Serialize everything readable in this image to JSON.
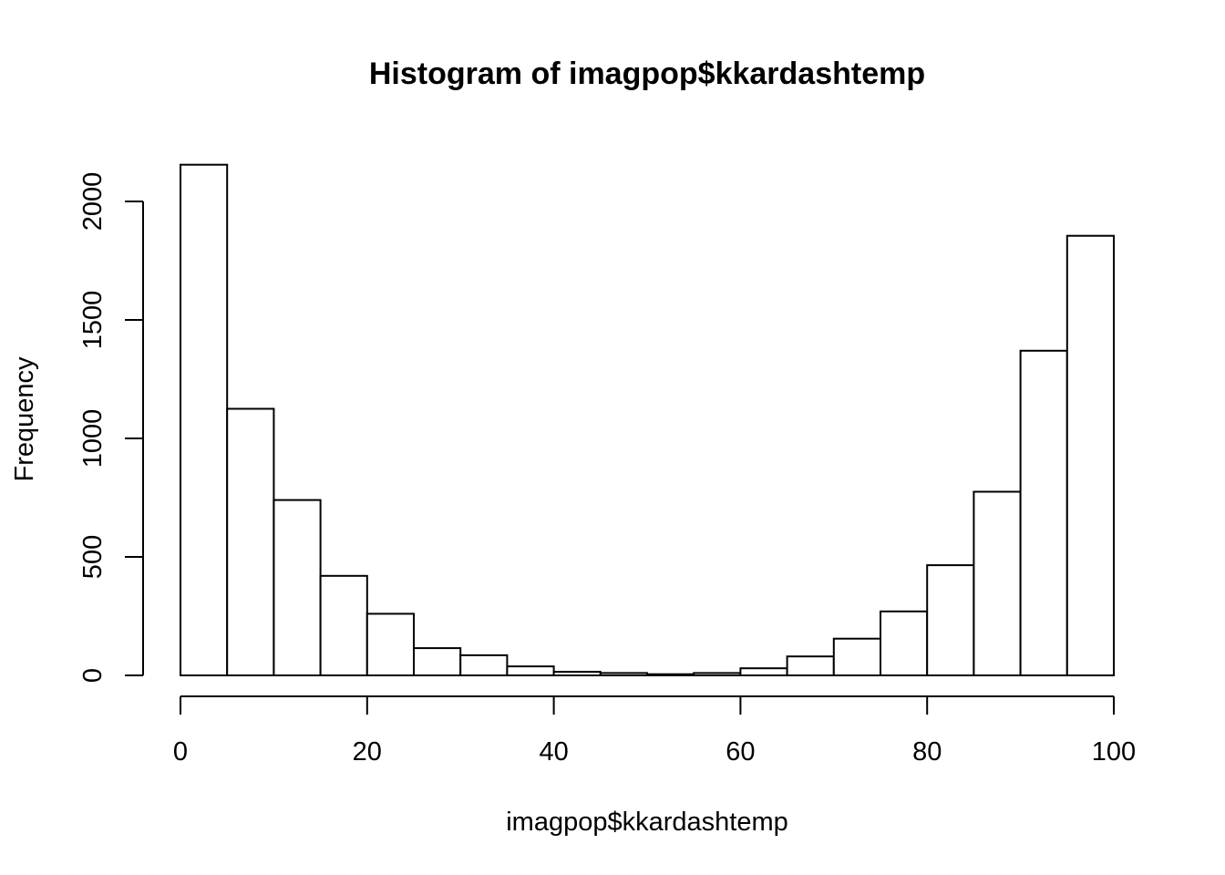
{
  "chart_data": {
    "type": "bar",
    "title": "Histogram of imagpop$kkardashtemp",
    "xlabel": "imagpop$kkardashtemp",
    "ylabel": "Frequency",
    "bin_width": 5,
    "bins": [
      {
        "start": 0,
        "end": 5,
        "count": 2155
      },
      {
        "start": 5,
        "end": 10,
        "count": 1125
      },
      {
        "start": 10,
        "end": 15,
        "count": 740
      },
      {
        "start": 15,
        "end": 20,
        "count": 420
      },
      {
        "start": 20,
        "end": 25,
        "count": 260
      },
      {
        "start": 25,
        "end": 30,
        "count": 115
      },
      {
        "start": 30,
        "end": 35,
        "count": 85
      },
      {
        "start": 35,
        "end": 40,
        "count": 38
      },
      {
        "start": 40,
        "end": 45,
        "count": 15
      },
      {
        "start": 45,
        "end": 50,
        "count": 10
      },
      {
        "start": 50,
        "end": 55,
        "count": 5
      },
      {
        "start": 55,
        "end": 60,
        "count": 10
      },
      {
        "start": 60,
        "end": 65,
        "count": 30
      },
      {
        "start": 65,
        "end": 70,
        "count": 80
      },
      {
        "start": 70,
        "end": 75,
        "count": 155
      },
      {
        "start": 75,
        "end": 80,
        "count": 270
      },
      {
        "start": 80,
        "end": 85,
        "count": 465
      },
      {
        "start": 85,
        "end": 90,
        "count": 775
      },
      {
        "start": 90,
        "end": 95,
        "count": 1370
      },
      {
        "start": 95,
        "end": 100,
        "count": 1855
      }
    ],
    "xlim": [
      0,
      100
    ],
    "ylim": [
      0,
      2155
    ],
    "x_ticks": [
      0,
      20,
      40,
      60,
      80,
      100
    ],
    "y_ticks": [
      0,
      500,
      1000,
      1500,
      2000
    ],
    "grid": false,
    "legend": "none"
  }
}
